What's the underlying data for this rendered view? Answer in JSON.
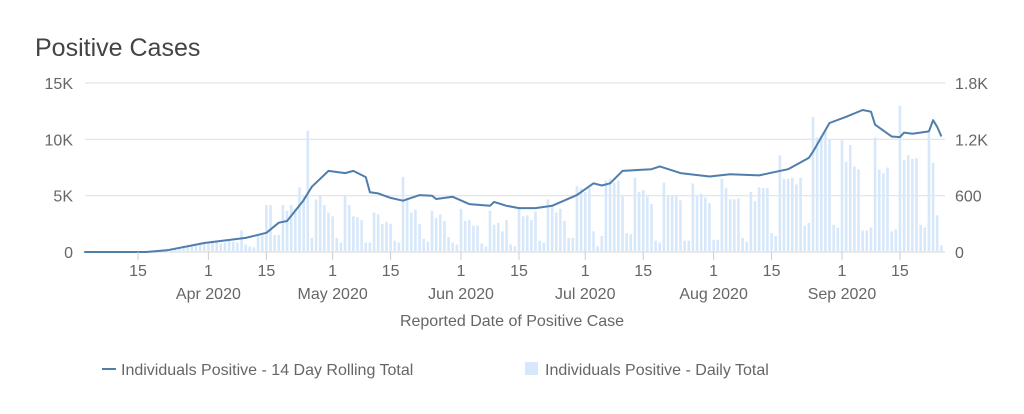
{
  "chart_data": {
    "type": "bar+line",
    "title": "Positive Cases",
    "xlabel": "Reported Date of Positive Case",
    "ylabel_left": "",
    "ylabel_right": "",
    "ylim_left": [
      0,
      15000
    ],
    "ylim_right": [
      0,
      1800
    ],
    "yticks_left": [
      "0",
      "5K",
      "10K",
      "15K"
    ],
    "yticks_left_values": [
      0,
      5000,
      10000,
      15000
    ],
    "yticks_right": [
      "0",
      "600",
      "1.2K",
      "1.8K"
    ],
    "yticks_right_values": [
      0,
      600,
      1200,
      1800
    ],
    "xticks": [
      {
        "date": "2020-03-15",
        "label": "15",
        "month": ""
      },
      {
        "date": "2020-04-01",
        "label": "1",
        "month": "Apr 2020"
      },
      {
        "date": "2020-04-15",
        "label": "15",
        "month": ""
      },
      {
        "date": "2020-05-01",
        "label": "1",
        "month": "May 2020"
      },
      {
        "date": "2020-05-15",
        "label": "15",
        "month": ""
      },
      {
        "date": "2020-06-01",
        "label": "1",
        "month": "Jun 2020"
      },
      {
        "date": "2020-06-15",
        "label": "15",
        "month": ""
      },
      {
        "date": "2020-07-01",
        "label": "1",
        "month": "Jul 2020"
      },
      {
        "date": "2020-07-15",
        "label": "15",
        "month": ""
      },
      {
        "date": "2020-08-01",
        "label": "1",
        "month": "Aug 2020"
      },
      {
        "date": "2020-08-15",
        "label": "15",
        "month": ""
      },
      {
        "date": "2020-09-01",
        "label": "1",
        "month": "Sep 2020"
      },
      {
        "date": "2020-09-15",
        "label": "15",
        "month": ""
      }
    ],
    "grid": true,
    "legend_position": "bottom",
    "colors": {
      "line": "#4f7eac",
      "bar": "#d7e8fb",
      "grid": "#e3e3e3",
      "text": "#666666",
      "title": "#444444"
    },
    "series": [
      {
        "name": "Individuals Positive - 14 Day Rolling Total",
        "type": "line",
        "axis": "left",
        "points": [
          [
            "2020-03-02",
            0
          ],
          [
            "2020-03-17",
            0
          ],
          [
            "2020-03-22",
            150
          ],
          [
            "2020-03-31",
            800
          ],
          [
            "2020-04-10",
            1250
          ],
          [
            "2020-04-15",
            1700
          ],
          [
            "2020-04-18",
            2600
          ],
          [
            "2020-04-20",
            2750
          ],
          [
            "2020-04-24",
            4600
          ],
          [
            "2020-04-26",
            5800
          ],
          [
            "2020-04-30",
            7200
          ],
          [
            "2020-05-04",
            7000
          ],
          [
            "2020-05-06",
            7200
          ],
          [
            "2020-05-09",
            6650
          ],
          [
            "2020-05-10",
            5300
          ],
          [
            "2020-05-12",
            5200
          ],
          [
            "2020-05-15",
            4800
          ],
          [
            "2020-05-18",
            4550
          ],
          [
            "2020-05-22",
            5050
          ],
          [
            "2020-05-25",
            5000
          ],
          [
            "2020-05-26",
            4700
          ],
          [
            "2020-05-30",
            4900
          ],
          [
            "2020-06-03",
            4250
          ],
          [
            "2020-06-08",
            4100
          ],
          [
            "2020-06-09",
            4450
          ],
          [
            "2020-06-12",
            4100
          ],
          [
            "2020-06-15",
            3900
          ],
          [
            "2020-06-19",
            3900
          ],
          [
            "2020-06-23",
            4100
          ],
          [
            "2020-06-29",
            5050
          ],
          [
            "2020-07-03",
            6100
          ],
          [
            "2020-07-05",
            5900
          ],
          [
            "2020-07-07",
            6100
          ],
          [
            "2020-07-10",
            7200
          ],
          [
            "2020-07-17",
            7350
          ],
          [
            "2020-07-19",
            7600
          ],
          [
            "2020-07-24",
            7000
          ],
          [
            "2020-07-31",
            6700
          ],
          [
            "2020-08-05",
            6900
          ],
          [
            "2020-08-12",
            6800
          ],
          [
            "2020-08-19",
            7350
          ],
          [
            "2020-08-24",
            8350
          ],
          [
            "2020-08-25",
            8900
          ],
          [
            "2020-08-29",
            11450
          ],
          [
            "2020-09-02",
            12000
          ],
          [
            "2020-09-06",
            12600
          ],
          [
            "2020-09-08",
            12450
          ],
          [
            "2020-09-09",
            11300
          ],
          [
            "2020-09-13",
            10250
          ],
          [
            "2020-09-15",
            10200
          ],
          [
            "2020-09-16",
            10600
          ],
          [
            "2020-09-18",
            10500
          ],
          [
            "2020-09-22",
            10700
          ],
          [
            "2020-09-23",
            11700
          ],
          [
            "2020-09-24",
            11100
          ],
          [
            "2020-09-25",
            10250
          ]
        ]
      },
      {
        "name": "Individuals Positive - Daily Total",
        "type": "bar",
        "axis": "right",
        "start_date": "2020-03-02",
        "values": [
          0,
          0,
          0,
          0,
          0,
          0,
          0,
          0,
          0,
          0,
          5,
          5,
          5,
          10,
          10,
          15,
          15,
          20,
          25,
          30,
          35,
          40,
          45,
          50,
          60,
          55,
          70,
          65,
          80,
          90,
          100,
          120,
          110,
          90,
          100,
          130,
          110,
          100,
          230,
          80,
          60,
          50,
          180,
          180,
          500,
          500,
          180,
          180,
          500,
          440,
          500,
          460,
          690,
          600,
          1290,
          150,
          560,
          600,
          500,
          420,
          380,
          150,
          100,
          600,
          500,
          380,
          370,
          340,
          100,
          100,
          420,
          400,
          300,
          320,
          300,
          120,
          100,
          800,
          580,
          420,
          450,
          300,
          140,
          110,
          440,
          360,
          400,
          330,
          160,
          100,
          80,
          460,
          330,
          340,
          280,
          280,
          90,
          60,
          440,
          290,
          310,
          220,
          340,
          80,
          60,
          460,
          380,
          390,
          340,
          430,
          120,
          100,
          560,
          480,
          420,
          460,
          330,
          150,
          150,
          700,
          680,
          640,
          680,
          220,
          60,
          170,
          760,
          780,
          740,
          760,
          590,
          200,
          190,
          790,
          640,
          660,
          590,
          510,
          120,
          100,
          740,
          600,
          600,
          600,
          550,
          120,
          120,
          730,
          600,
          620,
          580,
          520,
          130,
          130,
          780,
          680,
          560,
          560,
          570,
          150,
          110,
          640,
          540,
          690,
          680,
          680,
          200,
          170,
          1030,
          780,
          780,
          790,
          720,
          790,
          280,
          310,
          1440,
          1220,
          1240,
          1300,
          1200,
          290,
          260,
          1190,
          960,
          1140,
          910,
          880,
          230,
          230,
          260,
          1220,
          880,
          840,
          900,
          220,
          240,
          1560,
          980,
          1030,
          990,
          1000,
          290,
          260,
          1270,
          950,
          390,
          70
        ]
      }
    ]
  }
}
